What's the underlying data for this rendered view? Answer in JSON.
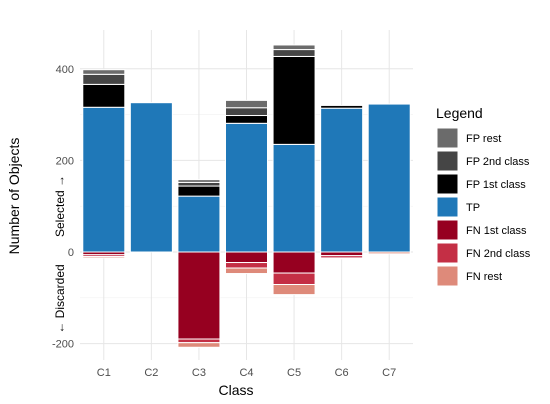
{
  "chart_data": {
    "type": "bar",
    "stacked": true,
    "xlabel": "Class",
    "ylabel": "Number of Objects",
    "selected_label": "Selected →",
    "discarded_label": "← Discarded",
    "categories": [
      "C1",
      "C2",
      "C3",
      "C4",
      "C5",
      "C6",
      "C7"
    ],
    "ylim": [
      -230,
      490
    ],
    "yticks": [
      -200,
      0,
      200,
      400
    ],
    "grid": true,
    "legend": {
      "title": "Legend",
      "position": "right",
      "items": [
        "FP rest",
        "FP 2nd class",
        "FP 1st class",
        "TP",
        "FN 1st class",
        "FN 2nd class",
        "FN rest"
      ]
    },
    "colors": {
      "FP rest": "#6b6b6b",
      "FP 2nd class": "#454545",
      "FP 1st class": "#000000",
      "TP": "#1f78b8",
      "FN 1st class": "#960020",
      "FN 2nd class": "#c42f45",
      "FN rest": "#de8a7a"
    },
    "positive_order": [
      "TP",
      "FP 1st class",
      "FP 2nd class",
      "FP rest"
    ],
    "negative_order": [
      "FN 1st class",
      "FN 2nd class",
      "FN rest"
    ],
    "series": [
      {
        "name": "TP",
        "values": [
          316,
          326,
          122,
          281,
          235,
          314,
          323
        ]
      },
      {
        "name": "FP 1st class",
        "values": [
          50,
          0,
          22,
          17,
          192,
          6,
          0
        ]
      },
      {
        "name": "FP 2nd class",
        "values": [
          22,
          0,
          8,
          17,
          15,
          0,
          0
        ]
      },
      {
        "name": "FP rest",
        "values": [
          10,
          0,
          6,
          16,
          10,
          0,
          0
        ]
      },
      {
        "name": "FN 1st class",
        "values": [
          -6,
          0,
          -190,
          -23,
          -46,
          -8,
          0
        ]
      },
      {
        "name": "FN 2nd class",
        "values": [
          -4,
          0,
          -8,
          -12,
          -25,
          -5,
          0
        ]
      },
      {
        "name": "FN rest",
        "values": [
          -3,
          0,
          -10,
          -12,
          -22,
          -2,
          -4
        ]
      }
    ]
  }
}
